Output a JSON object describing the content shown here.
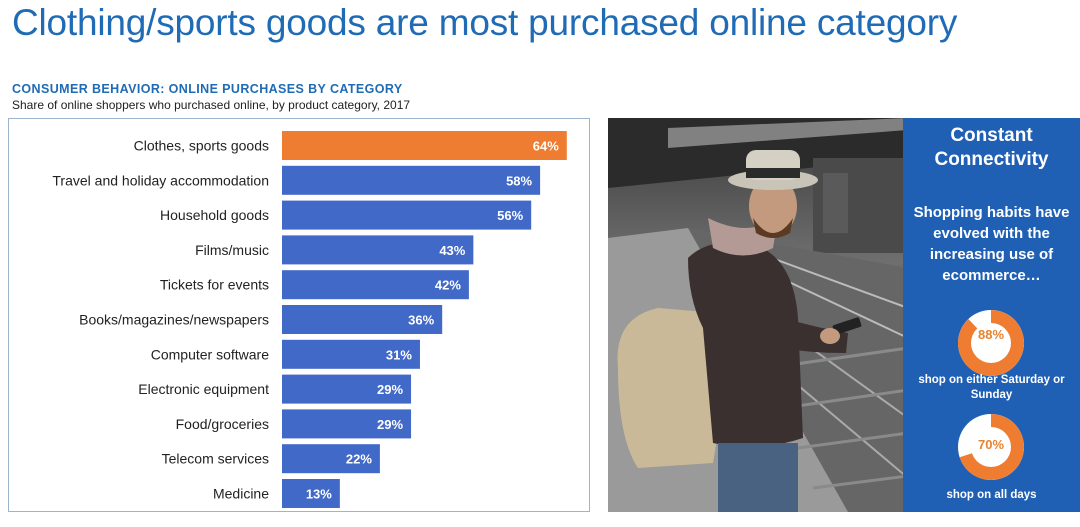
{
  "header": {
    "title": "Clothing/sports goods are most purchased online category"
  },
  "chart_data": {
    "type": "bar",
    "orientation": "horizontal",
    "title": "CONSUMER BEHAVIOR: ONLINE PURCHASES BY CATEGORY",
    "subtitle": "Share of online shoppers who purchased online, by product category, 2017",
    "categories": [
      "Clothes, sports goods",
      "Travel and holiday accommodation",
      "Household goods",
      "Films/music",
      "Tickets for events",
      "Books/magazines/newspapers",
      "Computer software",
      "Electronic equipment",
      "Food/groceries",
      "Telecom services",
      "Medicine"
    ],
    "values": [
      64,
      58,
      56,
      43,
      42,
      36,
      31,
      29,
      29,
      22,
      13
    ],
    "labels": [
      "64%",
      "58%",
      "56%",
      "43%",
      "42%",
      "36%",
      "31%",
      "29%",
      "29%",
      "22%",
      "13%"
    ],
    "unit": "%",
    "xlim": [
      0,
      100
    ],
    "highlight_index": 0,
    "colors": {
      "default": "#4169c8",
      "highlight": "#ee7d31"
    },
    "grid": false,
    "legend": "none"
  },
  "side_panel": {
    "heading": "Constant Connectivity",
    "text": "Shopping habits have evolved with the increasing use of ecommerce…",
    "bg_color": "#1f5fb4",
    "stats": [
      {
        "value": 88,
        "label": "88%",
        "caption": "shop on either Saturday or Sunday"
      },
      {
        "value": 70,
        "label": "70%",
        "caption": "shop on all days"
      }
    ],
    "accent_color": "#ee7d31"
  },
  "photo": {
    "icon": "man-with-smartphone-on-train-platform-photo"
  }
}
